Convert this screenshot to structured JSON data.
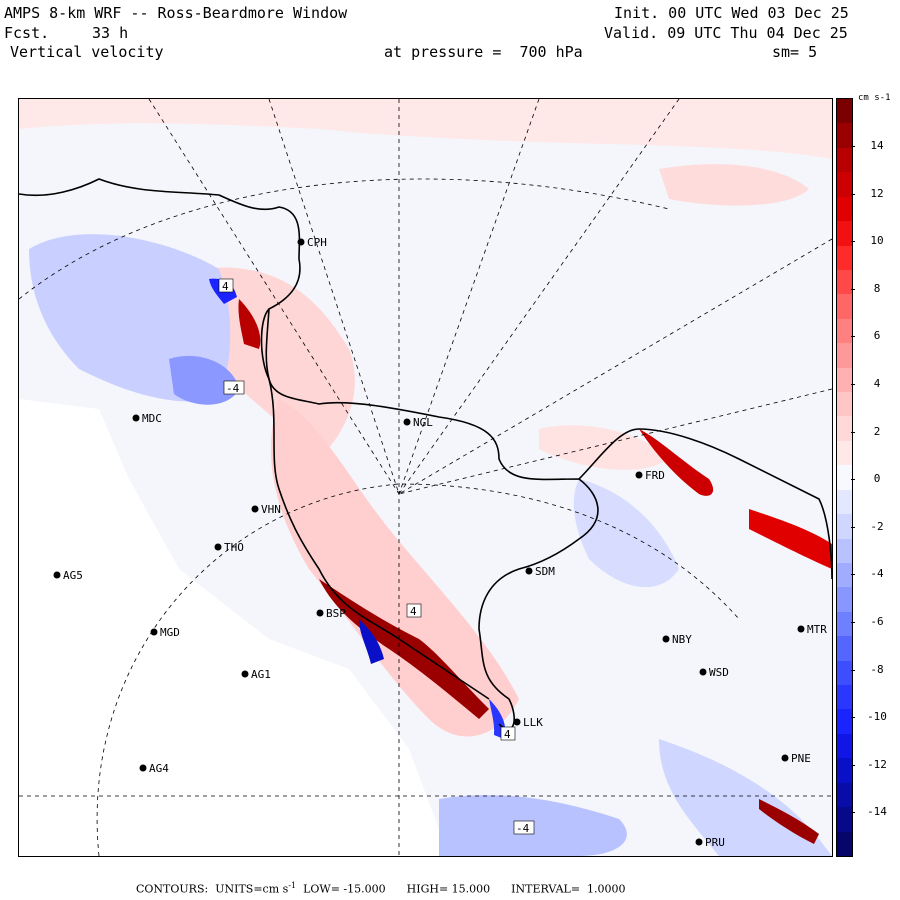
{
  "header": {
    "title": "AMPS 8-km WRF -- Ross-Beardmore Window",
    "init": "Init. 00 UTC Wed 03 Dec 25",
    "fcst_label": "Fcst.",
    "fcst_value": "33 h",
    "valid": "Valid. 09 UTC Thu 04 Dec 25",
    "field": "Vertical velocity",
    "pressure": "at pressure =  700 hPa",
    "smoothing": "sm= 5"
  },
  "colorbar": {
    "units": "cm s-1",
    "ticks": [
      "14",
      "12",
      "10",
      "8",
      "6",
      "4",
      "2",
      "0",
      "-2",
      "-4",
      "-6",
      "-8",
      "-10",
      "-12",
      "-14"
    ],
    "colors": [
      "#7a0000",
      "#9a0000",
      "#b80000",
      "#cc0000",
      "#e00000",
      "#f21010",
      "#ff2a2a",
      "#ff4848",
      "#ff6666",
      "#ff8080",
      "#ff9999",
      "#ffb0b0",
      "#ffc6c6",
      "#ffd8d8",
      "#ffe8e8",
      "#f8f8ff",
      "#e4e8ff",
      "#cfd6ff",
      "#b8c2ff",
      "#a0acff",
      "#8896ff",
      "#6e7fff",
      "#5566ff",
      "#3d4eff",
      "#2a38ff",
      "#1a24ff",
      "#0f16e6",
      "#0a10c8",
      "#0a0ca8",
      "#08088a",
      "#05056a"
    ]
  },
  "stations": [
    {
      "code": "CPH"
    },
    {
      "code": "MDC"
    },
    {
      "code": "NGL"
    },
    {
      "code": "FRD"
    },
    {
      "code": "VHN"
    },
    {
      "code": "THO"
    },
    {
      "code": "AG5"
    },
    {
      "code": "SDM"
    },
    {
      "code": "BSP"
    },
    {
      "code": "MGD"
    },
    {
      "code": "NBY"
    },
    {
      "code": "MTR"
    },
    {
      "code": "AG1"
    },
    {
      "code": "WSD"
    },
    {
      "code": "LLK"
    },
    {
      "code": "AG4"
    },
    {
      "code": "PNE"
    },
    {
      "code": "PRU"
    }
  ],
  "contour_labels": [
    "4",
    "-4",
    "4",
    "4",
    "-4"
  ],
  "footer": {
    "contours_label": "CONTOURS:",
    "units_label": "UNITS=cm s",
    "units_exp": "-1",
    "low": "LOW= -15.000",
    "high": "HIGH= 15.000",
    "interval": "INTERVAL=  1.0000"
  }
}
